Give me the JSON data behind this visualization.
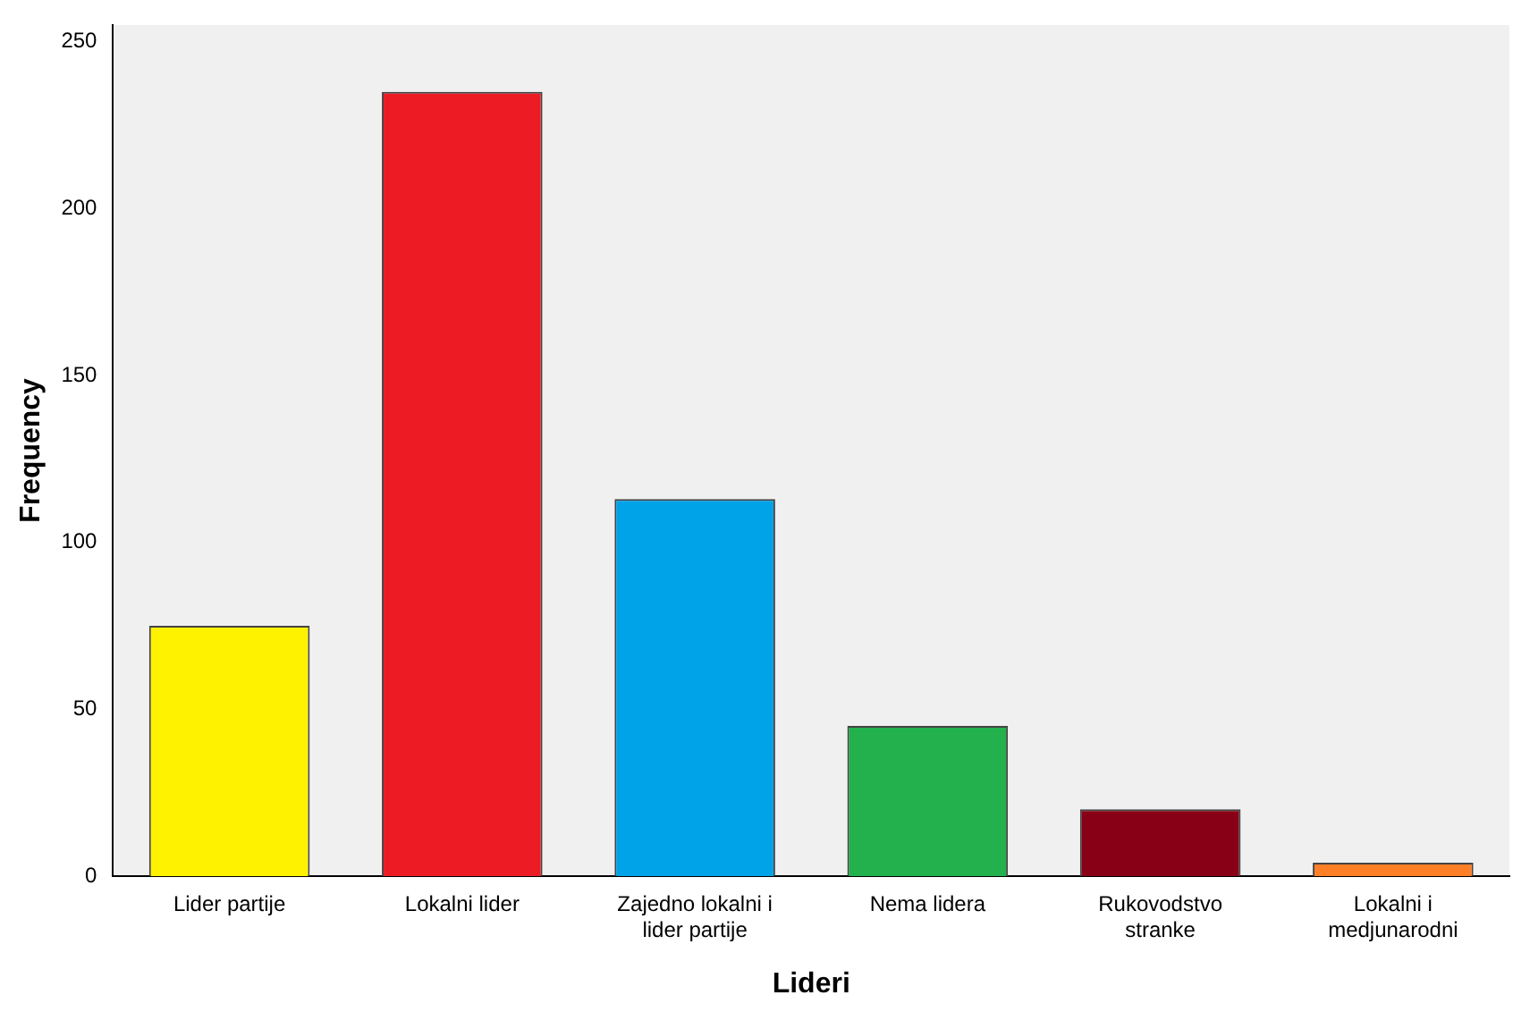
{
  "chart_data": {
    "type": "bar",
    "xlabel": "Lideri",
    "ylabel": "Frequency",
    "categories": [
      "Lider partije",
      "Lokalni lider",
      "Zajedno lokalni i lider partije",
      "Nema lidera",
      "Rukovodstvo stranke",
      "Lokalni i medjunarodni"
    ],
    "values": [
      75,
      235,
      113,
      45,
      20,
      4
    ],
    "colors": [
      "#fff200",
      "#ed1c24",
      "#00a2e8",
      "#22b14c",
      "#880015",
      "#ff7f27"
    ],
    "ylim": [
      0,
      255
    ],
    "yticks": [
      0,
      50,
      100,
      150,
      200,
      250
    ],
    "grid": false,
    "legend": false
  }
}
